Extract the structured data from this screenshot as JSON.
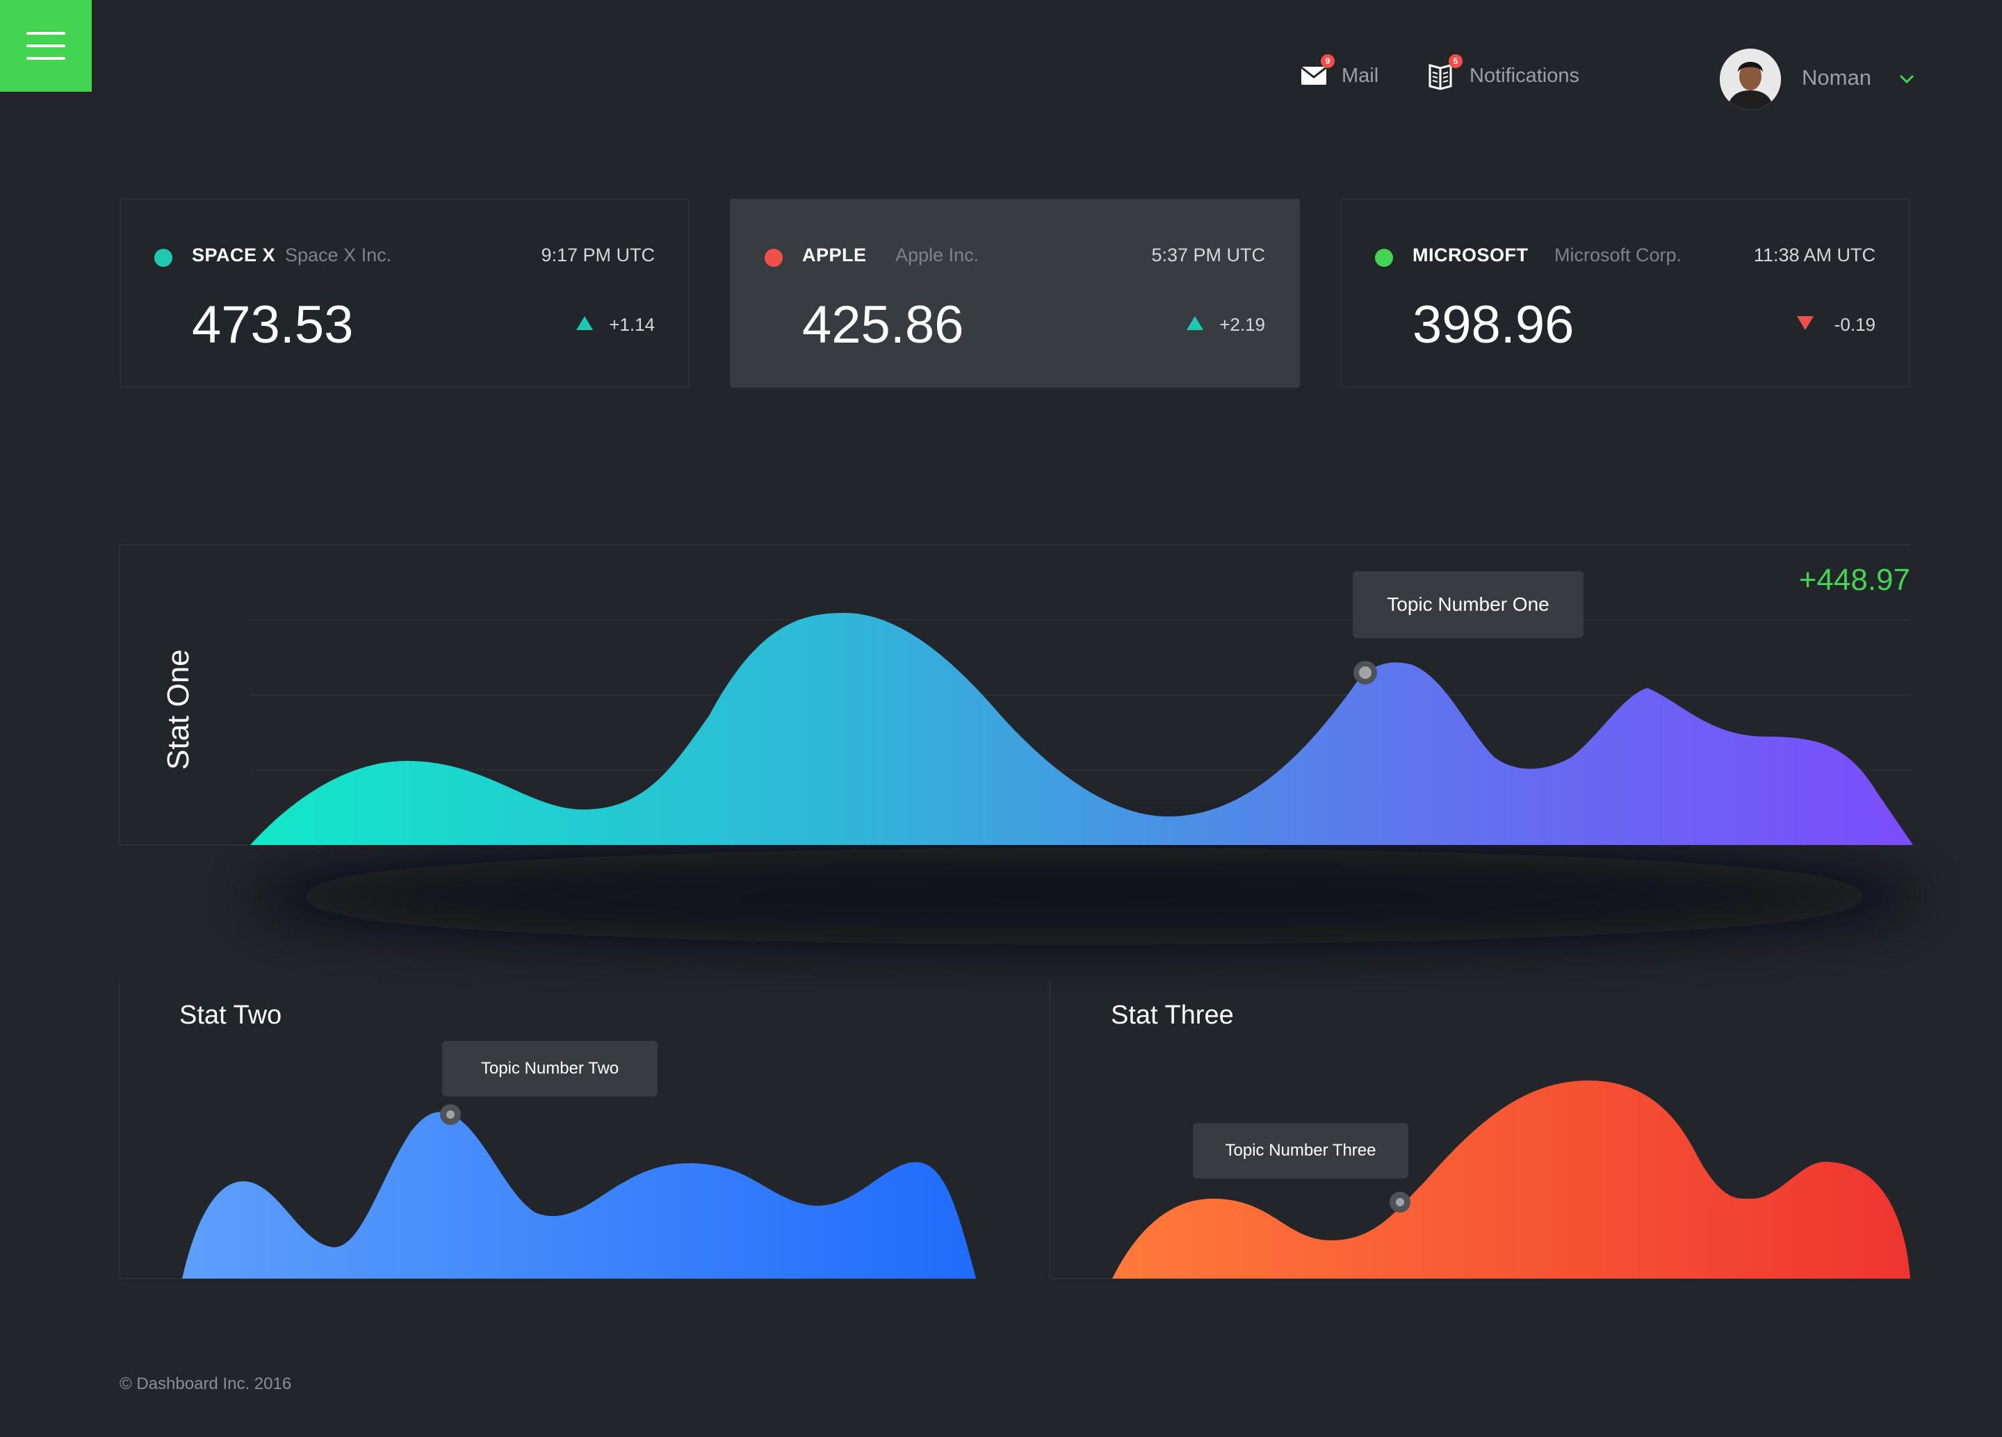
{
  "header": {
    "mail": {
      "label": "Mail",
      "badge": "9"
    },
    "notifications": {
      "label": "Notifications",
      "badge": "5"
    },
    "user": {
      "name": "Noman"
    }
  },
  "stocks": [
    {
      "ticker": "SPACE X",
      "company": "Space X Inc.",
      "time": "9:17 PM UTC",
      "price": "473.53",
      "change": "+1.14",
      "direction": "up",
      "dot_color": "#1ec9b2"
    },
    {
      "ticker": "APPLE",
      "company": "Apple Inc.",
      "time": "5:37 PM UTC",
      "price": "425.86",
      "change": "+2.19",
      "direction": "up",
      "dot_color": "#f0504a"
    },
    {
      "ticker": "MICROSOFT",
      "company": "Microsoft Corp.",
      "time": "11:38 AM UTC",
      "price": "398.96",
      "change": "-0.19",
      "direction": "down",
      "dot_color": "#43d552"
    }
  ],
  "colors": {
    "up": "#1ec9b2",
    "down": "#f0504a",
    "accent": "#43d552"
  },
  "charts": {
    "stat_one": {
      "title": "Stat One",
      "delta": "+448.97",
      "tooltip": "Topic Number One"
    },
    "stat_two": {
      "title": "Stat Two",
      "tooltip": "Topic Number Two"
    },
    "stat_three": {
      "title": "Stat Three",
      "tooltip": "Topic Number Three"
    }
  },
  "footer": {
    "copyright": "© Dashboard Inc. 2016"
  }
}
